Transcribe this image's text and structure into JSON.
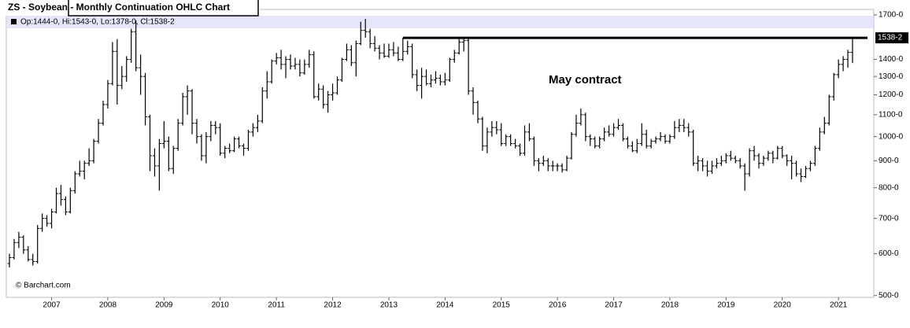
{
  "chart_data": {
    "type": "ohlc",
    "title": "ZS - Soybean - Monthly Continuation OHLC Chart",
    "legend": "Op:1444-0, Hi:1543-0, Lo:1378-0, Cl:1538-2",
    "annotation": "May contract",
    "source": "© Barchart.com",
    "log_scale": true,
    "color": "#000000",
    "ylim": [
      486,
      1741
    ],
    "yticks": [
      {
        "value": 500,
        "label": "500-0"
      },
      {
        "value": 600,
        "label": "600-0"
      },
      {
        "value": 700,
        "label": "700-0"
      },
      {
        "value": 800,
        "label": "800-0"
      },
      {
        "value": 900,
        "label": "900-0"
      },
      {
        "value": 1000,
        "label": "1000-0"
      },
      {
        "value": 1100,
        "label": "1100-0"
      },
      {
        "value": 1200,
        "label": "1200-0"
      },
      {
        "value": 1300,
        "label": "1300-0"
      },
      {
        "value": 1400,
        "label": "1400-0"
      },
      {
        "value": 1700,
        "label": "1700-0"
      }
    ],
    "reference_line": {
      "value": 1538.25,
      "label": "1538-2"
    },
    "categories": [
      null,
      null,
      null,
      null,
      null,
      null,
      null,
      null,
      null,
      "2007",
      null,
      null,
      null,
      null,
      null,
      null,
      null,
      null,
      null,
      null,
      null,
      "2008",
      null,
      null,
      null,
      null,
      null,
      null,
      null,
      null,
      null,
      null,
      null,
      "2009",
      null,
      null,
      null,
      null,
      null,
      null,
      null,
      null,
      null,
      null,
      null,
      "2010",
      null,
      null,
      null,
      null,
      null,
      null,
      null,
      null,
      null,
      null,
      null,
      "2011",
      null,
      null,
      null,
      null,
      null,
      null,
      null,
      null,
      null,
      null,
      null,
      "2012",
      null,
      null,
      null,
      null,
      null,
      null,
      null,
      null,
      null,
      null,
      null,
      "2013",
      null,
      null,
      null,
      null,
      null,
      null,
      null,
      null,
      null,
      null,
      null,
      "2014",
      null,
      null,
      null,
      null,
      null,
      null,
      null,
      null,
      null,
      null,
      null,
      "2015",
      null,
      null,
      null,
      null,
      null,
      null,
      null,
      null,
      null,
      null,
      null,
      "2016",
      null,
      null,
      null,
      null,
      null,
      null,
      null,
      null,
      null,
      null,
      null,
      "2017",
      null,
      null,
      null,
      null,
      null,
      null,
      null,
      null,
      null,
      null,
      null,
      "2018",
      null,
      null,
      null,
      null,
      null,
      null,
      null,
      null,
      null,
      null,
      null,
      "2019",
      null,
      null,
      null,
      null,
      null,
      null,
      null,
      null,
      null,
      null,
      null,
      "2020",
      null,
      null,
      null,
      null,
      null,
      null,
      null,
      null,
      null,
      null,
      null,
      "2021",
      null,
      null,
      null
    ],
    "ohlc": [
      [
        575,
        600,
        565,
        590
      ],
      [
        590,
        640,
        585,
        630
      ],
      [
        630,
        660,
        615,
        645
      ],
      [
        645,
        650,
        600,
        610
      ],
      [
        610,
        620,
        580,
        585
      ],
      [
        585,
        600,
        570,
        580
      ],
      [
        580,
        680,
        575,
        670
      ],
      [
        670,
        715,
        660,
        700
      ],
      [
        700,
        710,
        675,
        685
      ],
      [
        685,
        730,
        670,
        720
      ],
      [
        720,
        800,
        715,
        780
      ],
      [
        780,
        810,
        740,
        760
      ],
      [
        760,
        770,
        710,
        720
      ],
      [
        720,
        800,
        715,
        790
      ],
      [
        790,
        860,
        780,
        850
      ],
      [
        850,
        900,
        840,
        860
      ],
      [
        860,
        900,
        830,
        890
      ],
      [
        890,
        950,
        880,
        900
      ],
      [
        900,
        990,
        890,
        980
      ],
      [
        980,
        1080,
        970,
        1060
      ],
      [
        1060,
        1170,
        1050,
        1150
      ],
      [
        1150,
        1280,
        1130,
        1260
      ],
      [
        1260,
        1510,
        1250,
        1450
      ],
      [
        1450,
        1530,
        1150,
        1250
      ],
      [
        1250,
        1360,
        1230,
        1300
      ],
      [
        1300,
        1420,
        1270,
        1400
      ],
      [
        1400,
        1600,
        1380,
        1580
      ],
      [
        1580,
        1660,
        1330,
        1350
      ],
      [
        1350,
        1430,
        1200,
        1300
      ],
      [
        1300,
        1320,
        1050,
        1090
      ],
      [
        1090,
        1100,
        860,
        920
      ],
      [
        920,
        950,
        840,
        880
      ],
      [
        880,
        990,
        790,
        970
      ],
      [
        970,
        1070,
        950,
        980
      ],
      [
        980,
        1000,
        860,
        870
      ],
      [
        870,
        960,
        850,
        950
      ],
      [
        950,
        1080,
        940,
        1060
      ],
      [
        1060,
        1210,
        1050,
        1190
      ],
      [
        1190,
        1250,
        1100,
        1220
      ],
      [
        1220,
        1230,
        1010,
        1060
      ],
      [
        1060,
        1080,
        970,
        1000
      ],
      [
        1000,
        1010,
        900,
        920
      ],
      [
        920,
        1020,
        890,
        1000
      ],
      [
        1000,
        1070,
        980,
        1050
      ],
      [
        1050,
        1070,
        1010,
        1040
      ],
      [
        1040,
        1060,
        920,
        930
      ],
      [
        930,
        960,
        910,
        950
      ],
      [
        950,
        970,
        930,
        940
      ],
      [
        940,
        1000,
        935,
        990
      ],
      [
        990,
        1000,
        950,
        960
      ],
      [
        960,
        970,
        920,
        950
      ],
      [
        950,
        1030,
        940,
        1020
      ],
      [
        1020,
        1060,
        1000,
        1040
      ],
      [
        1040,
        1100,
        1020,
        1070
      ],
      [
        1070,
        1240,
        1060,
        1220
      ],
      [
        1220,
        1330,
        1180,
        1270
      ],
      [
        1270,
        1400,
        1260,
        1390
      ],
      [
        1390,
        1440,
        1370,
        1410
      ],
      [
        1410,
        1460,
        1340,
        1370
      ],
      [
        1370,
        1420,
        1290,
        1400
      ],
      [
        1400,
        1430,
        1340,
        1360
      ],
      [
        1360,
        1410,
        1340,
        1370
      ],
      [
        1370,
        1400,
        1300,
        1320
      ],
      [
        1320,
        1400,
        1310,
        1370
      ],
      [
        1370,
        1460,
        1350,
        1430
      ],
      [
        1430,
        1450,
        1180,
        1190
      ],
      [
        1190,
        1260,
        1170,
        1230
      ],
      [
        1230,
        1250,
        1130,
        1150
      ],
      [
        1150,
        1220,
        1110,
        1200
      ],
      [
        1200,
        1260,
        1170,
        1210
      ],
      [
        1210,
        1300,
        1200,
        1280
      ],
      [
        1280,
        1410,
        1270,
        1400
      ],
      [
        1400,
        1500,
        1390,
        1460
      ],
      [
        1460,
        1490,
        1360,
        1380
      ],
      [
        1380,
        1520,
        1300,
        1500
      ],
      [
        1500,
        1650,
        1490,
        1590
      ],
      [
        1590,
        1670,
        1540,
        1580
      ],
      [
        1580,
        1600,
        1470,
        1500
      ],
      [
        1500,
        1550,
        1450,
        1470
      ],
      [
        1470,
        1490,
        1400,
        1440
      ],
      [
        1440,
        1500,
        1410,
        1420
      ],
      [
        1420,
        1500,
        1410,
        1460
      ],
      [
        1460,
        1510,
        1420,
        1440
      ],
      [
        1440,
        1480,
        1390,
        1400
      ],
      [
        1400,
        1540,
        1390,
        1450
      ],
      [
        1450,
        1520,
        1430,
        1480
      ],
      [
        1480,
        1500,
        1290,
        1310
      ],
      [
        1310,
        1340,
        1220,
        1250
      ],
      [
        1250,
        1350,
        1180,
        1300
      ],
      [
        1300,
        1340,
        1250,
        1260
      ],
      [
        1260,
        1310,
        1240,
        1280
      ],
      [
        1280,
        1330,
        1260,
        1290
      ],
      [
        1290,
        1310,
        1250,
        1270
      ],
      [
        1270,
        1320,
        1250,
        1280
      ],
      [
        1280,
        1410,
        1270,
        1400
      ],
      [
        1400,
        1460,
        1380,
        1440
      ],
      [
        1440,
        1530,
        1430,
        1510
      ],
      [
        1510,
        1545,
        1450,
        1520
      ],
      [
        1520,
        1530,
        1200,
        1220
      ],
      [
        1220,
        1240,
        1100,
        1160
      ],
      [
        1160,
        1170,
        1060,
        1080
      ],
      [
        1080,
        1090,
        940,
        960
      ],
      [
        960,
        1040,
        930,
        1020
      ],
      [
        1020,
        1070,
        1000,
        1040
      ],
      [
        1040,
        1070,
        1010,
        1030
      ],
      [
        1030,
        1060,
        960,
        970
      ],
      [
        970,
        1010,
        960,
        1000
      ],
      [
        1000,
        1010,
        960,
        970
      ],
      [
        970,
        990,
        950,
        960
      ],
      [
        960,
        970,
        920,
        930
      ],
      [
        930,
        1050,
        920,
        1020
      ],
      [
        1020,
        1060,
        980,
        990
      ],
      [
        990,
        1000,
        880,
        900
      ],
      [
        900,
        910,
        860,
        890
      ],
      [
        890,
        920,
        880,
        900
      ],
      [
        900,
        910,
        860,
        880
      ],
      [
        880,
        900,
        860,
        880
      ],
      [
        880,
        890,
        860,
        880
      ],
      [
        880,
        890,
        855,
        865
      ],
      [
        865,
        920,
        860,
        910
      ],
      [
        910,
        1020,
        905,
        1010
      ],
      [
        1010,
        1100,
        1000,
        1060
      ],
      [
        1060,
        1130,
        1050,
        1100
      ],
      [
        1100,
        1110,
        980,
        1000
      ],
      [
        1000,
        1010,
        960,
        990
      ],
      [
        990,
        1000,
        950,
        960
      ],
      [
        960,
        1000,
        950,
        990
      ],
      [
        990,
        1040,
        980,
        1020
      ],
      [
        1020,
        1050,
        1000,
        1010
      ],
      [
        1010,
        1060,
        1000,
        1040
      ],
      [
        1040,
        1080,
        1030,
        1050
      ],
      [
        1050,
        1060,
        980,
        990
      ],
      [
        990,
        1000,
        950,
        960
      ],
      [
        960,
        980,
        935,
        940
      ],
      [
        940,
        990,
        930,
        970
      ],
      [
        970,
        1060,
        960,
        1010
      ],
      [
        1010,
        1030,
        950,
        960
      ],
      [
        960,
        990,
        950,
        980
      ],
      [
        980,
        1000,
        970,
        990
      ],
      [
        990,
        1020,
        980,
        1000
      ],
      [
        1000,
        1010,
        970,
        980
      ],
      [
        980,
        1010,
        970,
        1000
      ],
      [
        1000,
        1070,
        990,
        1040
      ],
      [
        1040,
        1080,
        1020,
        1050
      ],
      [
        1050,
        1080,
        1020,
        1040
      ],
      [
        1040,
        1060,
        1000,
        1020
      ],
      [
        1020,
        1030,
        880,
        890
      ],
      [
        890,
        920,
        860,
        900
      ],
      [
        900,
        910,
        860,
        880
      ],
      [
        880,
        900,
        840,
        860
      ],
      [
        860,
        900,
        850,
        880
      ],
      [
        880,
        910,
        870,
        890
      ],
      [
        890,
        920,
        880,
        900
      ],
      [
        900,
        930,
        890,
        920
      ],
      [
        920,
        940,
        900,
        910
      ],
      [
        910,
        920,
        890,
        900
      ],
      [
        900,
        910,
        870,
        880
      ],
      [
        880,
        890,
        790,
        850
      ],
      [
        850,
        950,
        840,
        940
      ],
      [
        940,
        960,
        900,
        920
      ],
      [
        920,
        930,
        870,
        890
      ],
      [
        890,
        920,
        880,
        910
      ],
      [
        910,
        940,
        900,
        930
      ],
      [
        930,
        940,
        890,
        910
      ],
      [
        910,
        960,
        905,
        950
      ],
      [
        950,
        960,
        910,
        920
      ],
      [
        920,
        925,
        880,
        900
      ],
      [
        900,
        920,
        830,
        890
      ],
      [
        890,
        900,
        840,
        850
      ],
      [
        850,
        870,
        820,
        840
      ],
      [
        840,
        880,
        835,
        870
      ],
      [
        870,
        900,
        860,
        890
      ],
      [
        890,
        960,
        880,
        950
      ],
      [
        950,
        1040,
        940,
        1020
      ],
      [
        1020,
        1090,
        1010,
        1060
      ],
      [
        1060,
        1200,
        1050,
        1190
      ],
      [
        1190,
        1320,
        1170,
        1310
      ],
      [
        1310,
        1400,
        1290,
        1370
      ],
      [
        1370,
        1420,
        1330,
        1400
      ],
      [
        1400,
        1460,
        1350,
        1444
      ],
      [
        1444,
        1543,
        1378,
        1538.25
      ]
    ]
  }
}
